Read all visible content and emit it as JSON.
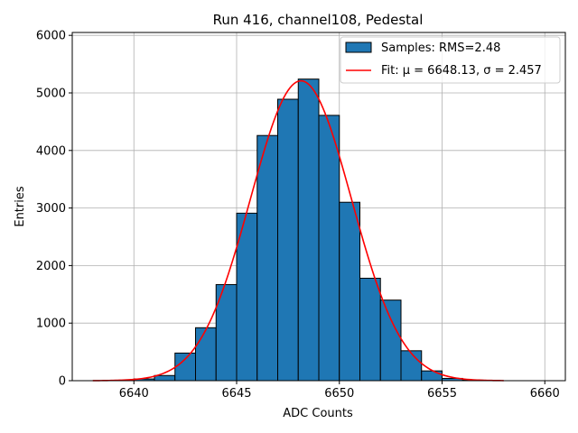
{
  "chart_data": {
    "type": "bar",
    "title": "Run 416, channel108, Pedestal",
    "xlabel": "ADC Counts",
    "ylabel": "Entries",
    "xlim": [
      6637,
      6661
    ],
    "ylim": [
      0,
      6050
    ],
    "xticks": [
      6640,
      6645,
      6650,
      6655,
      6660
    ],
    "yticks": [
      0,
      1000,
      2000,
      3000,
      4000,
      5000,
      6000
    ],
    "grid": true,
    "legend_position": "top-right",
    "bin_width": 1,
    "bins": [
      {
        "x": 6640,
        "value": 30
      },
      {
        "x": 6641,
        "value": 90
      },
      {
        "x": 6642,
        "value": 480
      },
      {
        "x": 6643,
        "value": 920
      },
      {
        "x": 6644,
        "value": 1670
      },
      {
        "x": 6645,
        "value": 2910
      },
      {
        "x": 6646,
        "value": 4260
      },
      {
        "x": 6647,
        "value": 4890
      },
      {
        "x": 6648,
        "value": 5240
      },
      {
        "x": 6649,
        "value": 4610
      },
      {
        "x": 6650,
        "value": 3100
      },
      {
        "x": 6651,
        "value": 1780
      },
      {
        "x": 6652,
        "value": 1400
      },
      {
        "x": 6653,
        "value": 520
      },
      {
        "x": 6654,
        "value": 170
      },
      {
        "x": 6655,
        "value": 40
      },
      {
        "x": 6656,
        "value": 10
      }
    ],
    "fit": {
      "mu": 6648.13,
      "sigma": 2.457,
      "amplitude": 5210,
      "x_range": [
        6638,
        6658
      ]
    },
    "series": [
      {
        "name": "Samples: RMS=2.48",
        "type": "bar",
        "color": "#1f77b4"
      },
      {
        "name": "Fit: μ = 6648.13, σ = 2.457",
        "type": "line",
        "color": "#ff0000"
      }
    ]
  }
}
